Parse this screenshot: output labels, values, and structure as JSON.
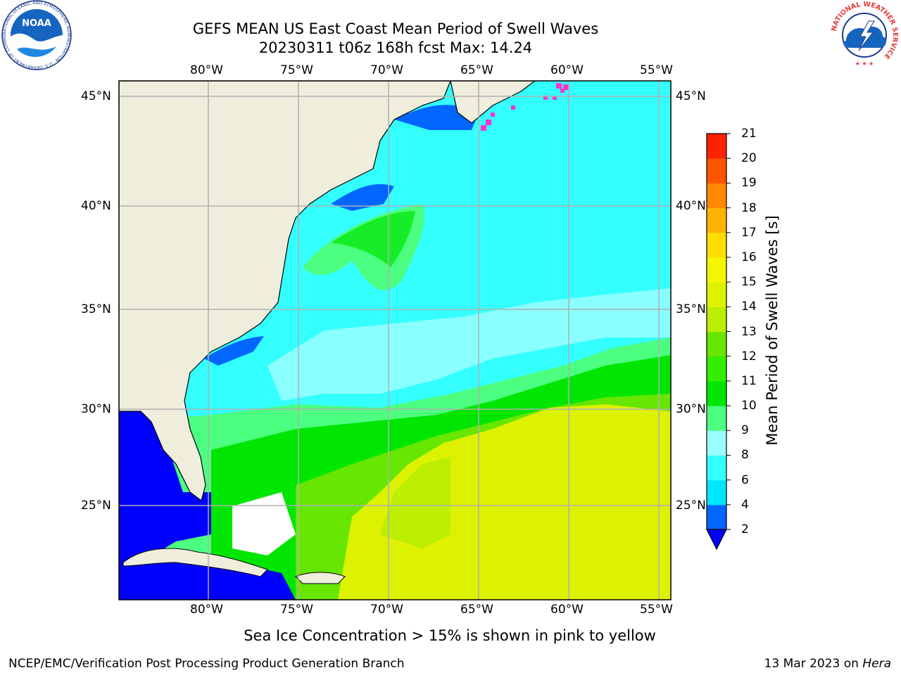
{
  "header": {
    "title_line1": "GEFS MEAN US East Coast Mean Period of Swell Waves",
    "title_line2": "20230311 t06z 168h fcst   Max: 14.24"
  },
  "map": {
    "lon_labels": [
      "80°W",
      "75°W",
      "70°W",
      "65°W",
      "60°W",
      "55°W"
    ],
    "lat_labels": [
      "45°N",
      "40°N",
      "35°N",
      "30°N",
      "25°N"
    ],
    "land_color": "#efeddc",
    "grid_color": "#b0b0b0"
  },
  "colorbar": {
    "label": "Mean Period of Swell Waves [s]",
    "ticks": [
      "2",
      "4",
      "6",
      "8",
      "9",
      "10",
      "11",
      "12",
      "13",
      "14",
      "15",
      "16",
      "17",
      "18",
      "19",
      "20",
      "21"
    ],
    "colors": [
      "#0066ff",
      "#00e6ff",
      "#33ffff",
      "#99ffff",
      "#4dff80",
      "#00e600",
      "#33ee00",
      "#66e600",
      "#bbee00",
      "#ddf200",
      "#f5f500",
      "#ffdd00",
      "#ffb300",
      "#ff8800",
      "#ff5500",
      "#ff2200",
      "#ff0000"
    ],
    "under_color": "#0000ff"
  },
  "note": "Sea Ice Concentration > 15% is shown in pink to yellow",
  "footer": {
    "left": "NCEP/EMC/Verification Post Processing Product Generation Branch",
    "right_date": "13 Mar 2023 on ",
    "right_host": "Hera"
  },
  "logos": {
    "noaa_text": "NOAA",
    "noaa_ring": "NATIONAL OCEANIC AND ATMOSPHERIC ADMINISTRATION · U.S. DEPARTMENT OF COMMERCE ·",
    "nws_ring": "NATIONAL WEATHER SERVICE"
  }
}
